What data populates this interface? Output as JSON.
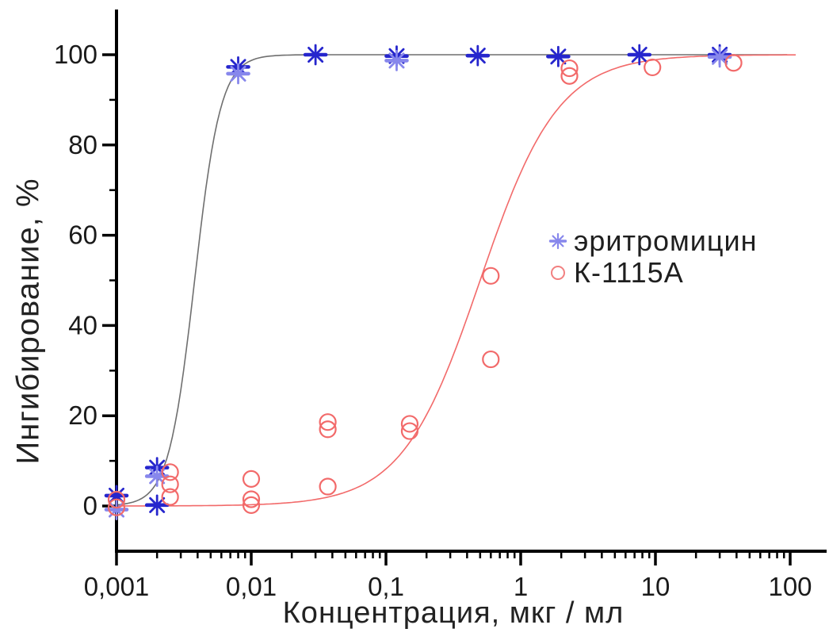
{
  "chart_data": {
    "type": "scatter",
    "title": "",
    "xlabel": "Концентрация, мкг / мл",
    "ylabel": "Ингибирование, %",
    "x_scale": "log",
    "xlim": [
      0.001,
      100
    ],
    "ylim": [
      -10,
      110
    ],
    "grid": false,
    "legend_position": "middle-right",
    "x_ticks": [
      {
        "value": 0.001,
        "label": "0,001"
      },
      {
        "value": 0.01,
        "label": "0,01"
      },
      {
        "value": 0.1,
        "label": "0,1"
      },
      {
        "value": 1,
        "label": "1"
      },
      {
        "value": 10,
        "label": "10"
      },
      {
        "value": 100,
        "label": "100"
      }
    ],
    "x_minor_ticks": "log-decades-2-to-9",
    "y_ticks": [
      {
        "value": 0,
        "label": "0"
      },
      {
        "value": 20,
        "label": "20"
      },
      {
        "value": 40,
        "label": "40"
      },
      {
        "value": 60,
        "label": "60"
      },
      {
        "value": 80,
        "label": "80"
      },
      {
        "value": 100,
        "label": "100"
      }
    ],
    "y_minor_ticks": [
      10,
      30,
      50,
      70,
      90
    ],
    "series": [
      {
        "name": "эритромицин",
        "marker": "asterisk",
        "color": "#2626cd",
        "color_light": "#8787ec",
        "points": [
          {
            "x": 0.001,
            "y": 2.3,
            "shade": "dark"
          },
          {
            "x": 0.001,
            "y": -0.8,
            "shade": "light"
          },
          {
            "x": 0.002,
            "y": 8.5,
            "shade": "dark"
          },
          {
            "x": 0.002,
            "y": 6.6,
            "shade": "light"
          },
          {
            "x": 0.002,
            "y": 0.2,
            "shade": "dark"
          },
          {
            "x": 0.008,
            "y": 97.3,
            "shade": "dark"
          },
          {
            "x": 0.008,
            "y": 95.8,
            "shade": "light"
          },
          {
            "x": 0.03,
            "y": 100.0,
            "shade": "dark"
          },
          {
            "x": 0.12,
            "y": 99.7,
            "shade": "dark"
          },
          {
            "x": 0.12,
            "y": 98.7,
            "shade": "light"
          },
          {
            "x": 0.48,
            "y": 99.8,
            "shade": "dark"
          },
          {
            "x": 1.9,
            "y": 99.6,
            "shade": "dark"
          },
          {
            "x": 7.6,
            "y": 100.0,
            "shade": "dark"
          },
          {
            "x": 30,
            "y": 100.0,
            "shade": "dark"
          },
          {
            "x": 30,
            "y": 99.5,
            "shade": "light"
          }
        ],
        "fit": {
          "model": "hill",
          "bottom": 0,
          "top": 100,
          "ec50": 0.0038,
          "hill_slope": 4.5,
          "color": "#6f6f6f",
          "x_range": [
            0.001,
            95
          ]
        }
      },
      {
        "name": "К-1115А",
        "marker": "circle",
        "color": "#f26a6a",
        "points": [
          {
            "x": 0.001,
            "y": 1.4
          },
          {
            "x": 0.001,
            "y": -0.3
          },
          {
            "x": 0.0025,
            "y": 7.5
          },
          {
            "x": 0.0025,
            "y": 4.8
          },
          {
            "x": 0.0025,
            "y": 2.0
          },
          {
            "x": 0.01,
            "y": 6.0
          },
          {
            "x": 0.01,
            "y": 1.5
          },
          {
            "x": 0.01,
            "y": 0.2
          },
          {
            "x": 0.037,
            "y": 18.6
          },
          {
            "x": 0.037,
            "y": 17.0
          },
          {
            "x": 0.037,
            "y": 4.3
          },
          {
            "x": 0.15,
            "y": 18.2
          },
          {
            "x": 0.15,
            "y": 16.6
          },
          {
            "x": 0.6,
            "y": 51.0
          },
          {
            "x": 0.6,
            "y": 32.5
          },
          {
            "x": 2.3,
            "y": 97.0
          },
          {
            "x": 2.3,
            "y": 95.3
          },
          {
            "x": 9.5,
            "y": 97.2
          },
          {
            "x": 38,
            "y": 98.2
          }
        ],
        "fit": {
          "model": "hill",
          "bottom": 0,
          "top": 100,
          "ec50": 0.5,
          "hill_slope": 1.5,
          "color": "#f26a6a",
          "x_range": [
            0.001,
            110
          ]
        }
      }
    ],
    "axis_color": "#000000",
    "tick_label_color": "#1a1a1a"
  },
  "legend": {
    "items": [
      {
        "label": "эритромицин"
      },
      {
        "label": "К-1115А"
      }
    ]
  }
}
